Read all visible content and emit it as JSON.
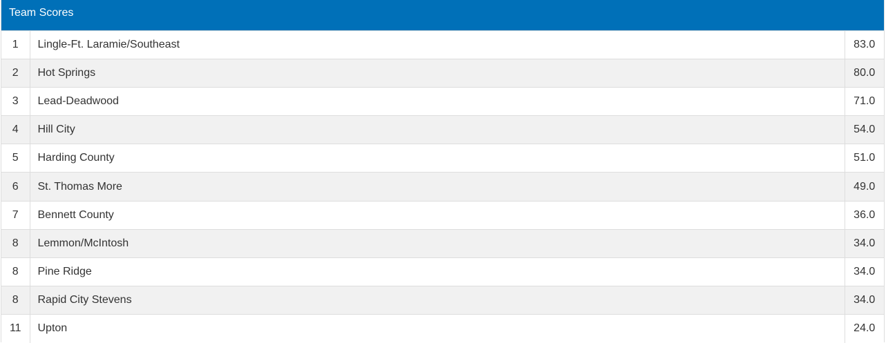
{
  "header": {
    "title": "Team Scores"
  },
  "table": {
    "rows": [
      [
        "1",
        "Lingle-Ft. Laramie/Southeast",
        "83.0"
      ],
      [
        "2",
        "Hot Springs",
        "80.0"
      ],
      [
        "3",
        "Lead-Deadwood",
        "71.0"
      ],
      [
        "4",
        "Hill City",
        "54.0"
      ],
      [
        "5",
        "Harding County",
        "51.0"
      ],
      [
        "6",
        "St. Thomas More",
        "49.0"
      ],
      [
        "7",
        "Bennett County",
        "36.0"
      ],
      [
        "8",
        "Lemmon/McIntosh",
        "34.0"
      ],
      [
        "8",
        "Pine Ridge",
        "34.0"
      ],
      [
        "8",
        "Rapid City Stevens",
        "34.0"
      ],
      [
        "11",
        "Upton",
        "24.0"
      ]
    ]
  }
}
